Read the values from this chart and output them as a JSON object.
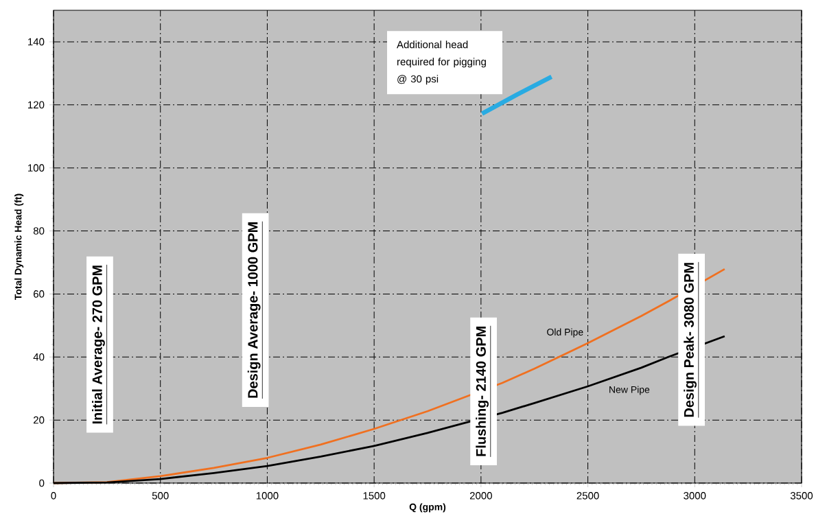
{
  "chart_data": {
    "type": "line",
    "xlabel": "Q (gpm)",
    "ylabel": "Total Dynamic Head (ft)",
    "x": [
      0,
      250,
      500,
      750,
      1000,
      1250,
      1500,
      1750,
      2100,
      2250,
      2500,
      2750,
      2880,
      3140
    ],
    "series": [
      {
        "name": "Old Pipe",
        "color": "#f07020",
        "values": [
          0,
          0.3,
          2.2,
          4.8,
          8.0,
          12.2,
          17.2,
          22.8,
          31.8,
          36.3,
          44.4,
          53.0,
          57.8,
          67.9
        ]
      },
      {
        "name": "New Pipe",
        "color": "#000000",
        "values": [
          0,
          0.2,
          1.3,
          3.2,
          5.4,
          8.4,
          11.8,
          15.9,
          22.3,
          25.4,
          30.7,
          36.6,
          40.1,
          46.6
        ]
      },
      {
        "color": "#29abe2",
        "x": [
          2005,
          2170,
          2330
        ],
        "values": [
          117.2,
          123.3,
          128.9
        ]
      }
    ],
    "xlim": [
      0,
      3500
    ],
    "ylim": [
      0,
      150
    ],
    "xticks": [
      0,
      500,
      1000,
      1500,
      2000,
      2500,
      3000,
      3500
    ],
    "yticks": [
      0,
      20,
      40,
      60,
      80,
      100,
      120,
      140
    ],
    "grid": true,
    "legend": false,
    "marker": "none",
    "line_style": "solid",
    "annotations": [
      "Initial Average- 270 GPM",
      "Design Average- 1000 GPM",
      "Flushing- 2140 GPM",
      "Design Peak- 3080 GPM",
      {
        "text": "Additional head required for pigging @ 30 psi",
        "x": 2005,
        "y": 117.2
      }
    ]
  }
}
